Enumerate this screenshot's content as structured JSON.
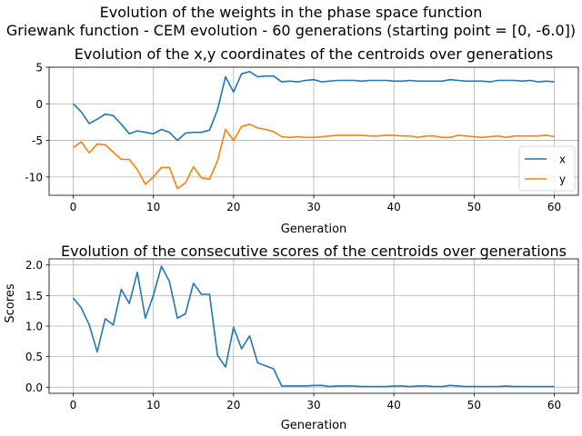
{
  "figure": {
    "suptitle_line1": "Evolution of the weights in the phase space  function",
    "suptitle_line2": "Griewank function - CEM evolution - 60 generations (starting point = [0, -6.0])"
  },
  "colors": {
    "x": "#1f77b4",
    "y": "#ff7f0e",
    "grid": "#b0b0b0"
  },
  "chart_data": [
    {
      "type": "line",
      "title": "Evolution of the x,y coordinates of the centroids over generations",
      "xlabel": "Generation",
      "ylabel": "",
      "xlim": [
        -3,
        63
      ],
      "ylim": [
        -12.5,
        5
      ],
      "xticks": [
        0,
        10,
        20,
        30,
        40,
        50,
        60
      ],
      "yticks": [
        5,
        0,
        -5,
        -10
      ],
      "grid": true,
      "legend": "right",
      "x": [
        0,
        1,
        2,
        3,
        4,
        5,
        6,
        7,
        8,
        9,
        10,
        11,
        12,
        13,
        14,
        15,
        16,
        17,
        18,
        19,
        20,
        21,
        22,
        23,
        24,
        25,
        26,
        27,
        28,
        29,
        30,
        31,
        32,
        33,
        34,
        35,
        36,
        37,
        38,
        39,
        40,
        41,
        42,
        43,
        44,
        45,
        46,
        47,
        48,
        49,
        50,
        51,
        52,
        53,
        54,
        55,
        56,
        57,
        58,
        59,
        60
      ],
      "series": [
        {
          "name": "x",
          "values": [
            0.0,
            -1.1,
            -2.7,
            -2.1,
            -1.4,
            -1.6,
            -2.8,
            -4.1,
            -3.7,
            -3.9,
            -4.1,
            -3.5,
            -3.9,
            -5.0,
            -4.0,
            -3.9,
            -3.9,
            -3.6,
            -0.8,
            3.7,
            1.6,
            4.1,
            4.4,
            3.7,
            3.8,
            3.8,
            3.0,
            3.1,
            3.0,
            3.2,
            3.3,
            3.0,
            3.1,
            3.2,
            3.2,
            3.2,
            3.1,
            3.2,
            3.2,
            3.2,
            3.1,
            3.1,
            3.2,
            3.1,
            3.1,
            3.1,
            3.1,
            3.3,
            3.2,
            3.1,
            3.1,
            3.1,
            3.0,
            3.2,
            3.2,
            3.2,
            3.1,
            3.2,
            3.0,
            3.1,
            3.0
          ]
        },
        {
          "name": "y",
          "values": [
            -6.0,
            -5.2,
            -6.7,
            -5.5,
            -5.6,
            -6.6,
            -7.6,
            -7.6,
            -9.0,
            -11.0,
            -10.0,
            -8.7,
            -8.7,
            -11.6,
            -10.8,
            -8.6,
            -10.1,
            -10.3,
            -7.8,
            -3.5,
            -5.0,
            -3.1,
            -2.8,
            -3.3,
            -3.5,
            -3.8,
            -4.5,
            -4.6,
            -4.5,
            -4.6,
            -4.6,
            -4.5,
            -4.4,
            -4.3,
            -4.3,
            -4.3,
            -4.3,
            -4.4,
            -4.4,
            -4.3,
            -4.3,
            -4.4,
            -4.4,
            -4.6,
            -4.4,
            -4.4,
            -4.6,
            -4.6,
            -4.3,
            -4.4,
            -4.5,
            -4.6,
            -4.5,
            -4.4,
            -4.6,
            -4.4,
            -4.4,
            -4.4,
            -4.4,
            -4.3,
            -4.5
          ]
        }
      ]
    },
    {
      "type": "line",
      "title": "Evolution of the consecutive scores of the centroids over generations",
      "xlabel": "Generation",
      "ylabel": "Scores",
      "xlim": [
        -3,
        63
      ],
      "ylim": [
        -0.1,
        2.1
      ],
      "xticks": [
        0,
        10,
        20,
        30,
        40,
        50,
        60
      ],
      "yticks": [
        "2.0",
        "1.5",
        "1.0",
        "0.5",
        "0.0"
      ],
      "grid": true,
      "x": [
        0,
        1,
        2,
        3,
        4,
        5,
        6,
        7,
        8,
        9,
        10,
        11,
        12,
        13,
        14,
        15,
        16,
        17,
        18,
        19,
        20,
        21,
        22,
        23,
        24,
        25,
        26,
        27,
        28,
        29,
        30,
        31,
        32,
        33,
        34,
        35,
        36,
        37,
        38,
        39,
        40,
        41,
        42,
        43,
        44,
        45,
        46,
        47,
        48,
        49,
        50,
        51,
        52,
        53,
        54,
        55,
        56,
        57,
        58,
        59,
        60
      ],
      "series": [
        {
          "values": [
            1.46,
            1.3,
            1.02,
            0.58,
            1.12,
            1.02,
            1.6,
            1.37,
            1.88,
            1.13,
            1.5,
            1.98,
            1.73,
            1.13,
            1.2,
            1.7,
            1.52,
            1.52,
            0.52,
            0.33,
            0.98,
            0.63,
            0.84,
            0.4,
            0.35,
            0.3,
            0.02,
            0.02,
            0.02,
            0.02,
            0.03,
            0.03,
            0.01,
            0.02,
            0.02,
            0.02,
            0.01,
            0.01,
            0.01,
            0.01,
            0.02,
            0.02,
            0.01,
            0.02,
            0.02,
            0.01,
            0.01,
            0.03,
            0.02,
            0.01,
            0.01,
            0.01,
            0.01,
            0.01,
            0.02,
            0.01,
            0.01,
            0.01,
            0.01,
            0.01,
            0.01
          ]
        }
      ]
    }
  ]
}
